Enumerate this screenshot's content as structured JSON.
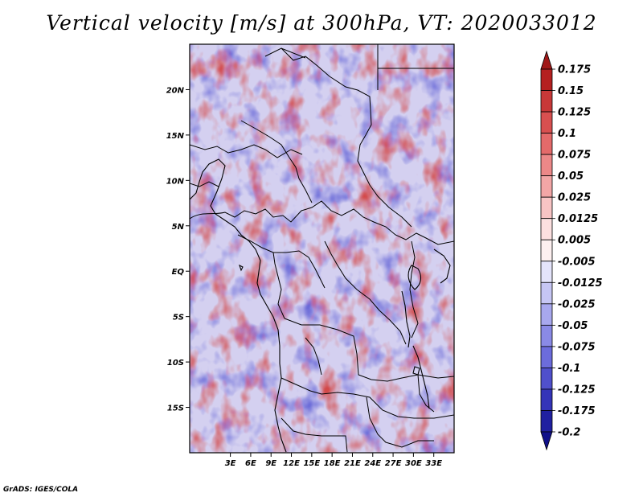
{
  "title": "Vertical velocity [m/s] at 300hPa, VT: 2020033012",
  "credit": "GrADS: IGES/COLA",
  "map": {
    "lat_range": [
      -20,
      25
    ],
    "lon_range": [
      -3,
      36
    ],
    "lat_ticks": [
      "20N",
      "15N",
      "10N",
      "5N",
      "EQ",
      "5S",
      "10S",
      "15S"
    ],
    "lat_tick_values": [
      20,
      15,
      10,
      5,
      0,
      -5,
      -10,
      -15
    ],
    "lon_ticks": [
      "3E",
      "6E",
      "9E",
      "12E",
      "15E",
      "18E",
      "21E",
      "24E",
      "27E",
      "30E",
      "33E"
    ],
    "lon_tick_values": [
      3,
      6,
      9,
      12,
      15,
      18,
      21,
      24,
      27,
      30,
      33
    ]
  },
  "colorbar": {
    "labels": [
      "0.175",
      "0.15",
      "0.125",
      "0.1",
      "0.075",
      "0.05",
      "0.025",
      "0.0125",
      "0.005",
      "-0.005",
      "-0.0125",
      "-0.025",
      "-0.05",
      "-0.075",
      "-0.1",
      "-0.125",
      "-0.175",
      "-0.2"
    ],
    "colors": [
      "#a01818",
      "#b52020",
      "#c83838",
      "#d85050",
      "#e46a6a",
      "#ec8888",
      "#f2a6a6",
      "#f8c4c4",
      "#fce0e0",
      "#fdf0f0",
      "#e4e4fb",
      "#c6c6f4",
      "#a8a8ee",
      "#8a8ae6",
      "#6c6cdc",
      "#5050cc",
      "#3434b8",
      "#2020a0",
      "#10108a"
    ]
  }
}
